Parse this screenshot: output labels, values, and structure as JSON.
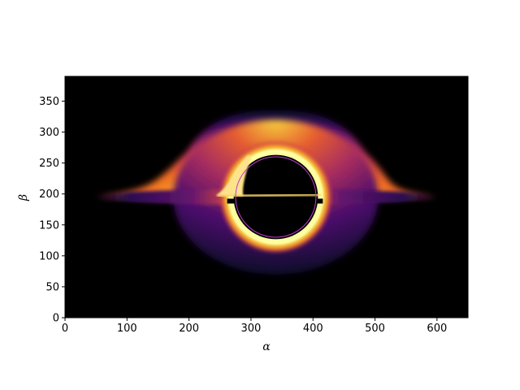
{
  "chart_data": {
    "type": "heatmap",
    "title": "",
    "xlabel": "α",
    "ylabel": "β",
    "xlim": [
      0,
      650
    ],
    "ylim": [
      0,
      390
    ],
    "xticks": [
      0,
      100,
      200,
      300,
      400,
      500,
      600
    ],
    "yticks": [
      0,
      50,
      100,
      150,
      200,
      250,
      300,
      350
    ],
    "colormap": "inferno",
    "background": "#000000",
    "shadow_center": [
      340,
      195
    ],
    "shadow_radius": 68,
    "photon_ring_radius": 65,
    "photon_ring_color": "#c23bc9",
    "disk_extent_x": [
      50,
      600
    ],
    "disk_midline_y": 195,
    "upper_lensed_image_top": 335,
    "lower_lensed_image_bottom": 70
  }
}
